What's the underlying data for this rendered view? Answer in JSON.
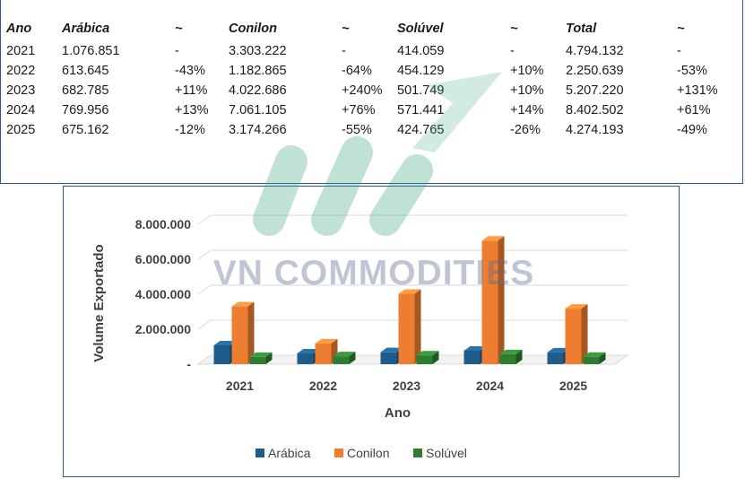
{
  "table": {
    "headers": [
      "Ano",
      "Arábica",
      "~",
      "Conilon",
      "~",
      "Solúvel",
      "~",
      "Total",
      "~"
    ],
    "rows": [
      [
        "2021",
        "1.076.851",
        "-",
        "3.303.222",
        "-",
        "414.059",
        "-",
        "4.794.132",
        "-"
      ],
      [
        "2022",
        "613.645",
        "-43%",
        "1.182.865",
        "-64%",
        "454.129",
        "+10%",
        "2.250.639",
        "-53%"
      ],
      [
        "2023",
        "682.785",
        "+11%",
        "4.022.686",
        "+240%",
        "501.749",
        "+10%",
        "5.207.220",
        "+131%"
      ],
      [
        "2024",
        "769.956",
        "+13%",
        "7.061.105",
        "+76%",
        "571.441",
        "+14%",
        "8.402.502",
        "+61%"
      ],
      [
        "2025",
        "675.162",
        "-12%",
        "3.174.266",
        "-55%",
        "424.765",
        "-26%",
        "4.274.193",
        "-49%"
      ]
    ]
  },
  "watermark": {
    "text": "VN COMMODITIES"
  },
  "chart_data": {
    "type": "bar",
    "categories": [
      "2021",
      "2022",
      "2023",
      "2024",
      "2025"
    ],
    "series": [
      {
        "name": "Arábica",
        "values": [
          1076851,
          613645,
          682785,
          769956,
          675162
        ],
        "color": "#1f5c8a"
      },
      {
        "name": "Conilon",
        "values": [
          3303222,
          1182865,
          4022686,
          7061105,
          3174266
        ],
        "color": "#ed7d31"
      },
      {
        "name": "Solúvel",
        "values": [
          414059,
          454129,
          501749,
          571441,
          424765
        ],
        "color": "#2e7d32"
      }
    ],
    "xlabel": "Ano",
    "ylabel": "Volume Exportado",
    "ylim": [
      0,
      8000000
    ],
    "yticks": [
      "-",
      "2.000.000",
      "4.000.000",
      "6.000.000",
      "8.000.000"
    ],
    "grid": true,
    "legend_position": "bottom",
    "style": "3d-column"
  }
}
